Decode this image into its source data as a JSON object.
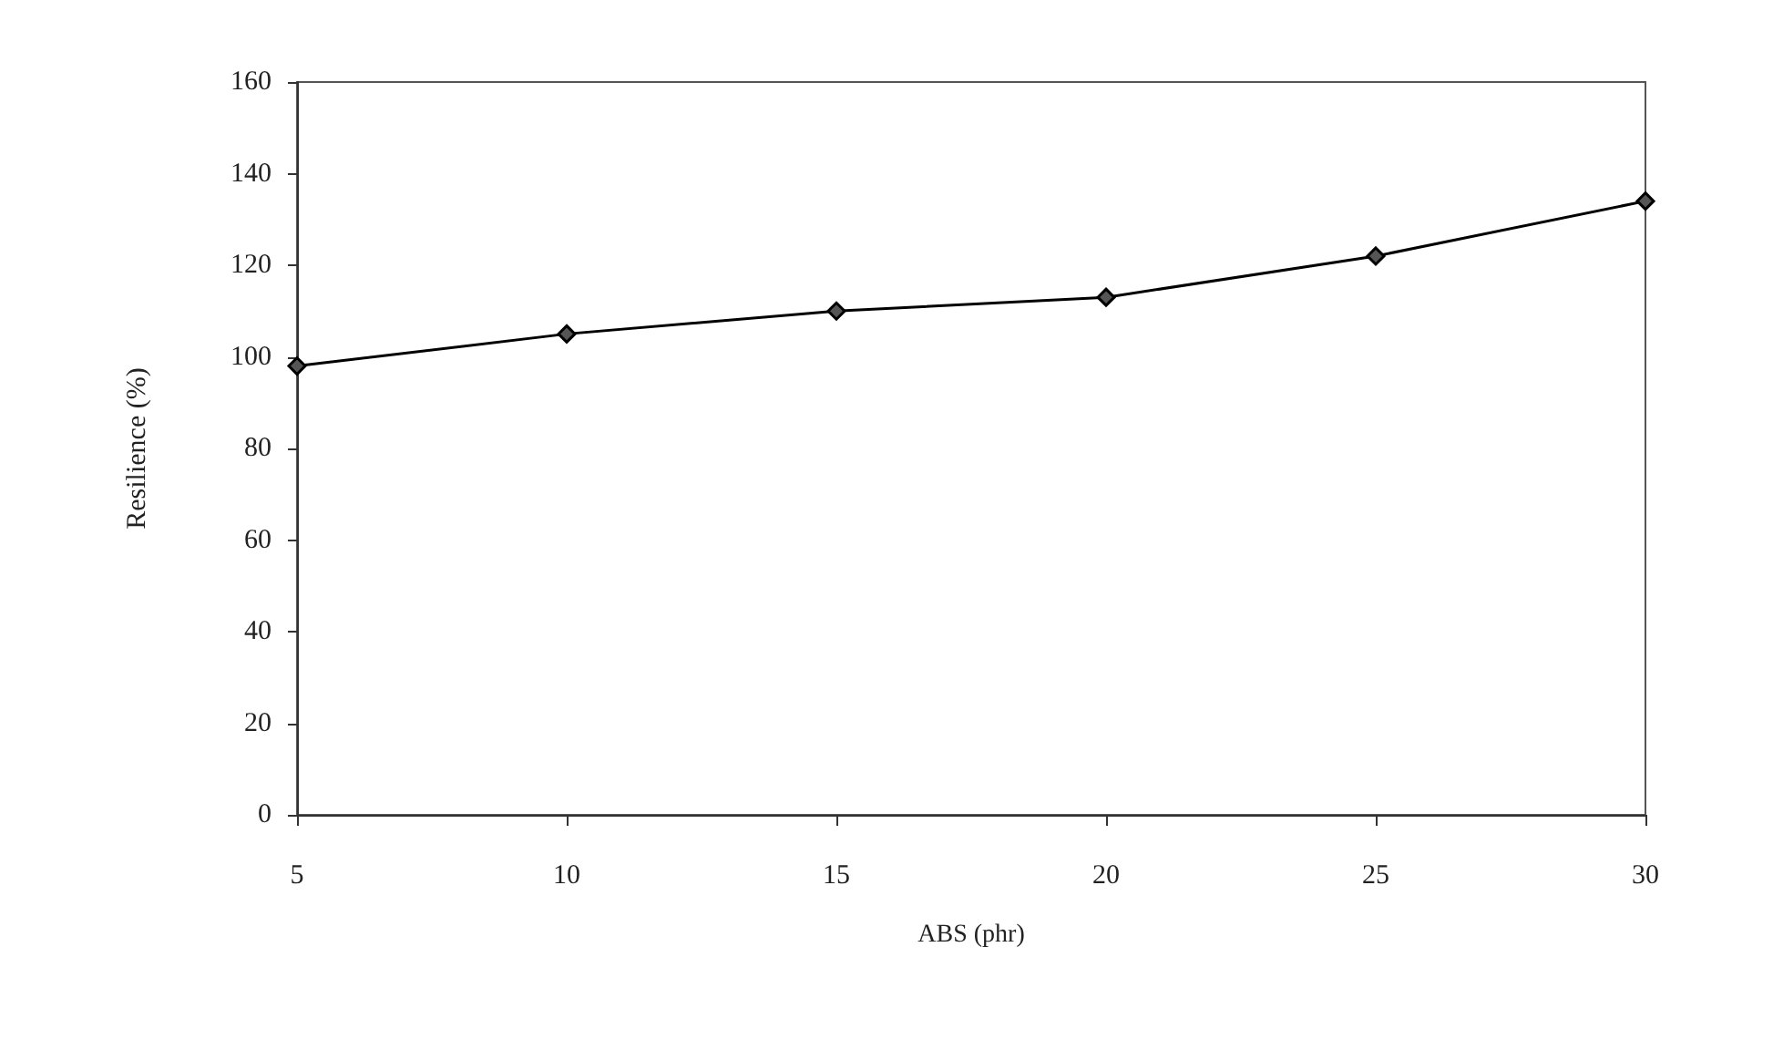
{
  "chart_data": {
    "type": "line",
    "xlabel": "ABS (phr)",
    "ylabel": "Resilience (%)",
    "categories": [
      "5",
      "10",
      "15",
      "20",
      "25",
      "30"
    ],
    "series": [
      {
        "color": "#000000",
        "values": [
          98,
          105,
          110,
          113,
          122,
          134
        ]
      }
    ],
    "ylim": [
      0,
      160
    ],
    "yticks": [
      0,
      20,
      40,
      60,
      80,
      100,
      120,
      140,
      160
    ],
    "grid": false,
    "marker": "diamond",
    "line_style": "solid"
  }
}
